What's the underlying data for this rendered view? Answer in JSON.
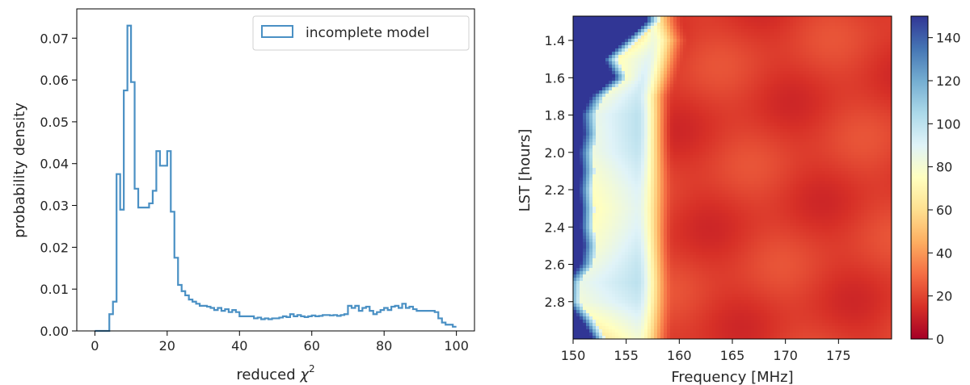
{
  "chart_data": [
    {
      "type": "histogram",
      "xlabel": "reduced",
      "xlabel_symbol": "χ",
      "xlabel_superscript": "2",
      "ylabel": "probability density",
      "xlim": [
        -5,
        105
      ],
      "ylim": [
        0,
        0.077
      ],
      "xticks": [
        0,
        20,
        40,
        60,
        80,
        100
      ],
      "xtick_labels": [
        "0",
        "20",
        "40",
        "60",
        "80",
        "100"
      ],
      "yticks": [
        0,
        0.01,
        0.02,
        0.03,
        0.04,
        0.05,
        0.06,
        0.07
      ],
      "ytick_labels": [
        "0.00",
        "0.01",
        "0.02",
        "0.03",
        "0.04",
        "0.05",
        "0.06",
        "0.07"
      ],
      "legend_position": "top-right",
      "line_color": "#4a90c4",
      "series": [
        {
          "name": "incomplete model",
          "bin_start": 0,
          "bin_width": 1,
          "values": [
            0.0,
            0.0,
            0.0,
            0.0,
            0.004,
            0.007,
            0.0375,
            0.029,
            0.0575,
            0.073,
            0.0595,
            0.034,
            0.0295,
            0.0295,
            0.0295,
            0.0305,
            0.0335,
            0.043,
            0.0395,
            0.0395,
            0.043,
            0.0285,
            0.0175,
            0.011,
            0.0095,
            0.0085,
            0.0075,
            0.007,
            0.0065,
            0.006,
            0.006,
            0.0058,
            0.0055,
            0.005,
            0.0055,
            0.0048,
            0.0052,
            0.0045,
            0.005,
            0.0045,
            0.0035,
            0.0035,
            0.0035,
            0.0035,
            0.003,
            0.0032,
            0.0028,
            0.003,
            0.0028,
            0.003,
            0.003,
            0.0032,
            0.0035,
            0.0033,
            0.004,
            0.0035,
            0.0038,
            0.0035,
            0.0033,
            0.0035,
            0.0037,
            0.0035,
            0.0036,
            0.0038,
            0.0038,
            0.0037,
            0.0038,
            0.0036,
            0.0038,
            0.004,
            0.006,
            0.0055,
            0.006,
            0.0048,
            0.0055,
            0.0058,
            0.0048,
            0.004,
            0.0045,
            0.005,
            0.0055,
            0.005,
            0.0058,
            0.006,
            0.0055,
            0.0065,
            0.0055,
            0.0058,
            0.0052,
            0.0048,
            0.0048,
            0.0048,
            0.0048,
            0.0048,
            0.0045,
            0.003,
            0.002,
            0.0015,
            0.0015,
            0.001
          ]
        }
      ]
    },
    {
      "type": "heatmap",
      "xlabel": "Frequency [MHz]",
      "ylabel": "LST [hours]",
      "xlim": [
        150,
        180
      ],
      "ylim": [
        3.0,
        1.27
      ],
      "xticks": [
        150,
        155,
        160,
        165,
        170,
        175
      ],
      "xtick_labels": [
        "150",
        "155",
        "160",
        "165",
        "170",
        "175"
      ],
      "yticks": [
        1.4,
        1.6,
        1.8,
        2.0,
        2.2,
        2.4,
        2.6,
        2.8
      ],
      "ytick_labels": [
        "1.4",
        "1.6",
        "1.8",
        "2.0",
        "2.2",
        "2.4",
        "2.6",
        "2.8"
      ],
      "colormap": "RdYlBu",
      "colorbar": {
        "vmin": 0,
        "vmax": 150,
        "ticks": [
          0,
          20,
          40,
          60,
          80,
          100,
          120,
          140
        ],
        "tick_labels": [
          "0",
          "20",
          "40",
          "60",
          "80",
          "100",
          "120",
          "140"
        ]
      },
      "colormap_stops": [
        "#a50026",
        "#d73027",
        "#f46d43",
        "#fdae61",
        "#fee090",
        "#ffffbf",
        "#e0f3f8",
        "#abd9e9",
        "#74add1",
        "#4575b4",
        "#313695"
      ],
      "lst_values": [
        1.3,
        1.4,
        1.5,
        1.6,
        1.7,
        1.8,
        1.9,
        2.0,
        2.1,
        2.2,
        2.3,
        2.4,
        2.5,
        2.6,
        2.7,
        2.8,
        2.9,
        3.0
      ],
      "edge_freq": [
        157.5,
        155.5,
        153.5,
        154.5,
        152.3,
        151.4,
        151.6,
        151.2,
        151.4,
        151.2,
        151.4,
        151.3,
        151.6,
        151.3,
        149.9,
        149.9,
        151.4,
        152.5
      ],
      "pale_center_freq": [
        157.0,
        157.5,
        157.0,
        156.5,
        156.0,
        156.0,
        156.0,
        156.0,
        156.0,
        156.0,
        156.0,
        156.0,
        156.0,
        156.0,
        156.0,
        156.0,
        156.0,
        156.0
      ],
      "pale_center_value": [
        80,
        82,
        88,
        92,
        96,
        100,
        100,
        98,
        94,
        90,
        88,
        90,
        94,
        98,
        100,
        96,
        88,
        80
      ],
      "red_background_value": 18
    }
  ]
}
